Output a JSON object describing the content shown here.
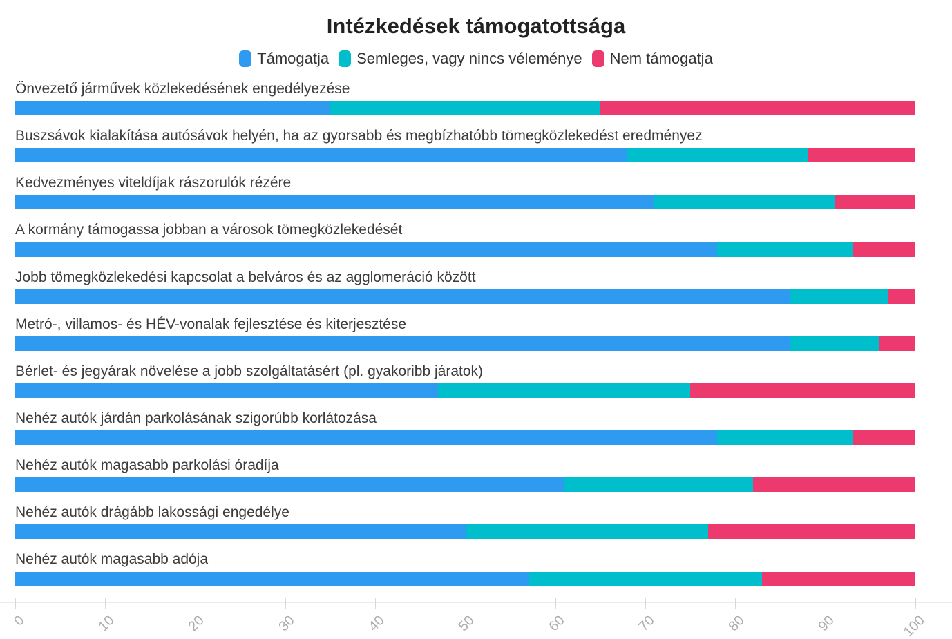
{
  "title": "Intézkedések támogatottsága",
  "colors": {
    "support": "#2E9BF0",
    "neutral": "#00BECC",
    "oppose": "#EC3A6E",
    "axis_line": "#ebebeb",
    "tick_text": "#adadad",
    "label_text": "#3c3c3c"
  },
  "chart_data": {
    "type": "bar",
    "orientation": "horizontal",
    "stacked": true,
    "title": "Intézkedések támogatottsága",
    "legend_position": "top",
    "grid": false,
    "xlim": [
      0,
      100
    ],
    "x_ticks": [
      0,
      10,
      20,
      30,
      40,
      50,
      60,
      70,
      80,
      90,
      100
    ],
    "categories": [
      "Önvezető járművek közlekedésének engedélyezése",
      "Buszsávok kialakítása autósávok helyén, ha az gyorsabb és megbízhatóbb tömegközlekedést eredményez",
      "Kedvezményes viteldíjak rászorulók rézére",
      "A kormány támogassa jobban a városok tömegközlekedését",
      "Jobb tömegközlekedési kapcsolat a belváros és az agglomeráció között",
      "Metró-, villamos- és HÉV-vonalak fejlesztése és kiterjesztése",
      "Bérlet- és jegyárak növelése a jobb szolgáltatásért (pl. gyakoribb járatok)",
      "Nehéz autók járdán parkolásának szigorúbb korlátozása",
      "Nehéz autók magasabb parkolási óradíja",
      "Nehéz autók drágább lakossági engedélye",
      "Nehéz autók magasabb adója"
    ],
    "series": [
      {
        "name": "Támogatja",
        "color": "#2E9BF0",
        "values": [
          35,
          68,
          71,
          78,
          86,
          86,
          47,
          78,
          61,
          50,
          57
        ]
      },
      {
        "name": "Semleges, vagy nincs véleménye",
        "color": "#00BECC",
        "values": [
          30,
          20,
          20,
          15,
          11,
          10,
          28,
          15,
          21,
          27,
          26
        ]
      },
      {
        "name": "Nem támogatja",
        "color": "#EC3A6E",
        "values": [
          35,
          12,
          9,
          7,
          3,
          4,
          25,
          7,
          18,
          23,
          17
        ]
      }
    ]
  }
}
